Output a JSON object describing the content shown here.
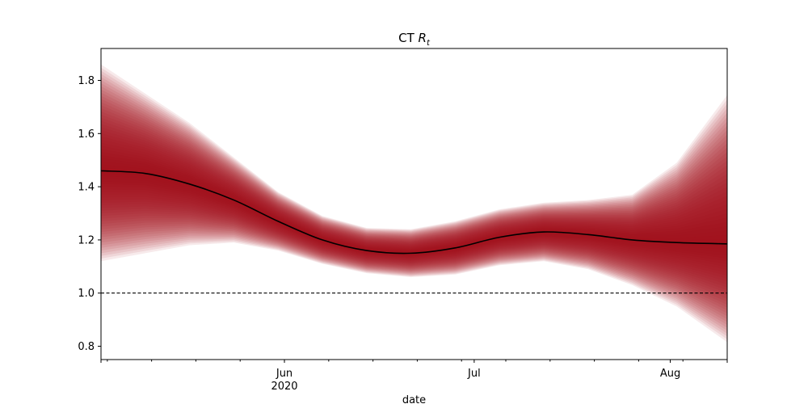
{
  "chart_data": {
    "type": "area",
    "title_main": "CT ",
    "title_symbol": "R",
    "title_subscript": "t",
    "xlabel": "date",
    "ylabel": "",
    "x_start": "2020-05-03",
    "x_end": "2020-08-10",
    "ylim": [
      0.75,
      1.92
    ],
    "yticks": [
      0.8,
      1.0,
      1.2,
      1.4,
      1.6,
      1.8
    ],
    "ytick_labels": [
      "0.8",
      "1.0",
      "1.2",
      "1.4",
      "1.6",
      "1.8"
    ],
    "xticks_major": [
      {
        "date": "2020-06-01",
        "label": "Jun",
        "sublabel": "2020"
      },
      {
        "date": "2020-07-01",
        "label": "Jul",
        "sublabel": ""
      },
      {
        "date": "2020-08-01",
        "label": "Aug",
        "sublabel": ""
      }
    ],
    "reference_line": 1.0,
    "grid": false,
    "colors": {
      "median": "#000000",
      "band": "#a50f15",
      "reference": "#000000"
    },
    "series": [
      {
        "dates": [
          "2020-05-03",
          "2020-05-10",
          "2020-05-17",
          "2020-05-24",
          "2020-05-31",
          "2020-06-07",
          "2020-06-14",
          "2020-06-21",
          "2020-06-28",
          "2020-07-05",
          "2020-07-12",
          "2020-07-19",
          "2020-07-26",
          "2020-08-02",
          "2020-08-10"
        ],
        "median": [
          1.46,
          1.45,
          1.41,
          1.35,
          1.27,
          1.2,
          1.16,
          1.15,
          1.17,
          1.21,
          1.23,
          1.22,
          1.2,
          1.19,
          1.185
        ],
        "spread_lower": [
          0.34,
          0.3,
          0.23,
          0.16,
          0.11,
          0.09,
          0.085,
          0.09,
          0.1,
          0.105,
          0.11,
          0.13,
          0.17,
          0.24,
          0.37
        ],
        "spread_upper": [
          0.4,
          0.3,
          0.23,
          0.16,
          0.11,
          0.09,
          0.085,
          0.09,
          0.1,
          0.105,
          0.11,
          0.13,
          0.17,
          0.3,
          0.56
        ]
      }
    ]
  }
}
